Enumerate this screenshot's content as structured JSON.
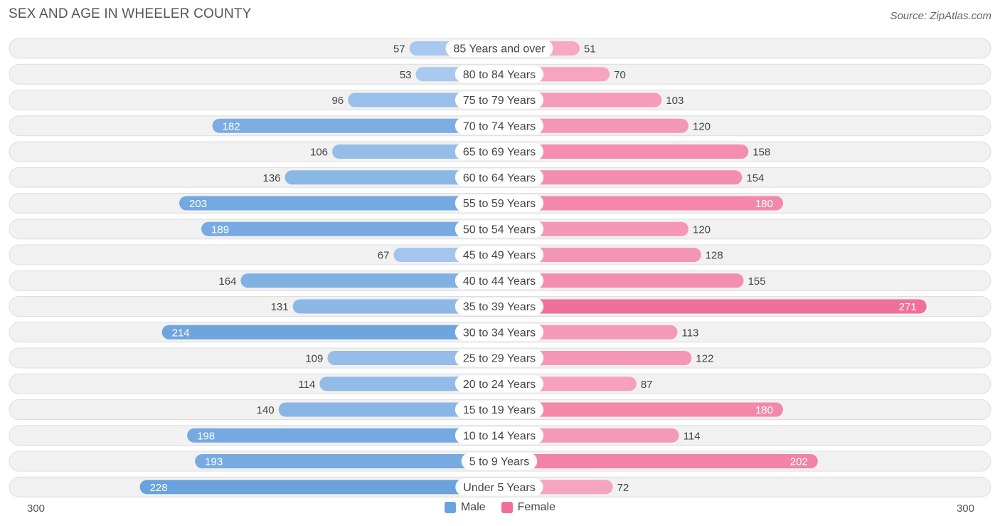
{
  "title": "SEX AND AGE IN WHEELER COUNTY",
  "source": "Source: ZipAtlas.com",
  "colors": {
    "male_light": "#a9c9ed",
    "male_dark": "#6aa2de",
    "female_light": "#f7a9c3",
    "female_dark": "#f0709a"
  },
  "chart_data": {
    "type": "bar",
    "orientation": "horizontal-diverging",
    "categories": [
      "85 Years and over",
      "80 to 84 Years",
      "75 to 79 Years",
      "70 to 74 Years",
      "65 to 69 Years",
      "60 to 64 Years",
      "55 to 59 Years",
      "50 to 54 Years",
      "45 to 49 Years",
      "40 to 44 Years",
      "35 to 39 Years",
      "30 to 34 Years",
      "25 to 29 Years",
      "20 to 24 Years",
      "15 to 19 Years",
      "10 to 14 Years",
      "5 to 9 Years",
      "Under 5 Years"
    ],
    "series": [
      {
        "name": "Male",
        "values": [
          57,
          53,
          96,
          182,
          106,
          136,
          203,
          189,
          67,
          164,
          131,
          214,
          109,
          114,
          140,
          198,
          193,
          228
        ]
      },
      {
        "name": "Female",
        "values": [
          51,
          70,
          103,
          120,
          158,
          154,
          180,
          120,
          128,
          155,
          271,
          113,
          122,
          87,
          180,
          114,
          202,
          72
        ]
      }
    ],
    "xlim": [
      -300,
      300
    ],
    "axis_min_label": "300",
    "axis_max_label": "300",
    "legend": {
      "position": "bottom-center",
      "male_label": "Male",
      "female_label": "Female"
    }
  }
}
